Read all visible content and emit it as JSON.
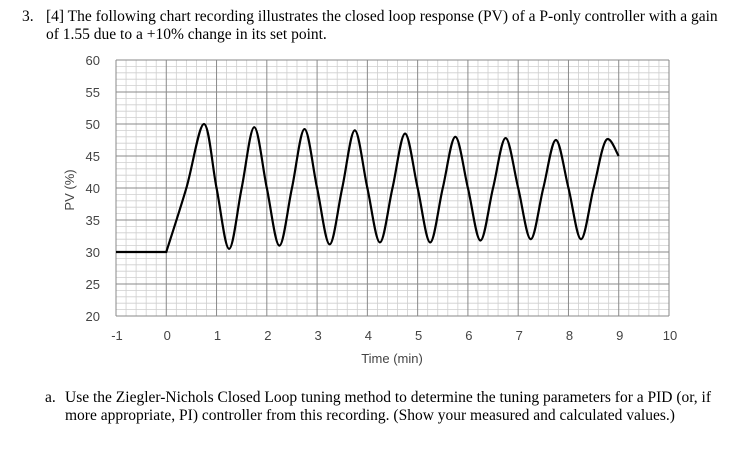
{
  "question": {
    "number": "3.",
    "text": "[4] The following chart recording illustrates the closed loop response (PV) of a P-only controller with a gain of 1.55 due to a +10% change in its set point."
  },
  "subquestion": {
    "label": "a.",
    "text": "Use the Ziegler-Nichols Closed Loop tuning method to determine the tuning parameters for a PID (or, if more appropriate, PI) controller from this recording. (Show your measured and calculated values.)"
  },
  "chart_data": {
    "type": "line",
    "xlabel": "Time (min)",
    "ylabel": "PV (%)",
    "xlim": [
      -1,
      10
    ],
    "ylim": [
      20,
      60
    ],
    "x_ticks": [
      "-1",
      "0",
      "1",
      "2",
      "3",
      "4",
      "5",
      "6",
      "7",
      "8",
      "9",
      "10"
    ],
    "y_ticks": [
      "60",
      "55",
      "50",
      "45",
      "40",
      "35",
      "30",
      "25",
      "20"
    ],
    "grid": true,
    "series": [
      {
        "line_color": "#000000",
        "x": [
          -1,
          0,
          0.4,
          0.75,
          1.0,
          1.25,
          1.5,
          1.75,
          2.0,
          2.25,
          2.5,
          2.75,
          3.0,
          3.25,
          3.5,
          3.75,
          4.0,
          4.25,
          4.5,
          4.75,
          5.0,
          5.25,
          5.5,
          5.75,
          6.0,
          6.25,
          6.5,
          6.75,
          7.0,
          7.25,
          7.5,
          7.75,
          8.0,
          8.25,
          8.5,
          8.75,
          9.0
        ],
        "y": [
          30,
          30,
          40,
          50,
          40,
          30.5,
          40,
          49.5,
          40,
          31,
          40,
          49.2,
          40,
          31.2,
          40,
          49,
          40,
          31.5,
          40,
          48.5,
          40,
          31.5,
          40,
          48,
          40,
          31.8,
          40,
          47.8,
          40,
          32,
          40,
          47.5,
          40,
          32,
          40,
          47.5,
          45
        ]
      }
    ]
  }
}
